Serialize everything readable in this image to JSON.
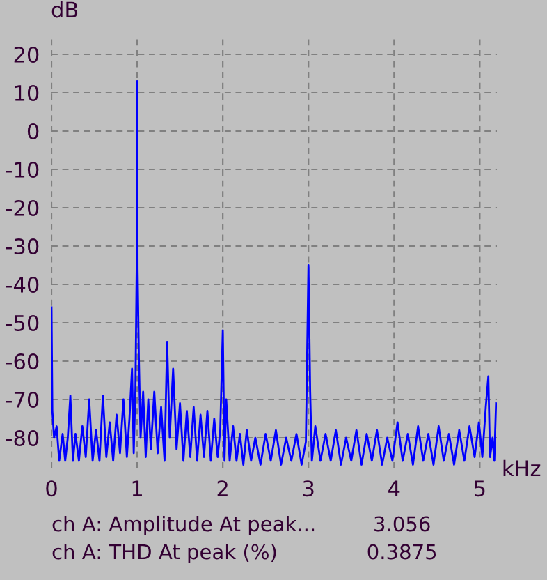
{
  "chart_data": {
    "type": "line",
    "xlabel": "kHz",
    "ylabel": "dB",
    "x": [
      0.0,
      0.01,
      0.03,
      0.06,
      0.09,
      0.13,
      0.16,
      0.19,
      0.22,
      0.25,
      0.28,
      0.32,
      0.36,
      0.4,
      0.44,
      0.48,
      0.52,
      0.56,
      0.6,
      0.64,
      0.68,
      0.72,
      0.76,
      0.8,
      0.84,
      0.88,
      0.91,
      0.94,
      0.96,
      0.98,
      0.995,
      1.0,
      1.005,
      1.02,
      1.04,
      1.07,
      1.1,
      1.13,
      1.16,
      1.2,
      1.24,
      1.28,
      1.32,
      1.35,
      1.38,
      1.42,
      1.46,
      1.5,
      1.54,
      1.58,
      1.62,
      1.66,
      1.7,
      1.74,
      1.78,
      1.82,
      1.86,
      1.9,
      1.94,
      1.97,
      2.0,
      2.02,
      2.04,
      2.08,
      2.12,
      2.16,
      2.2,
      2.24,
      2.28,
      2.33,
      2.38,
      2.44,
      2.5,
      2.56,
      2.62,
      2.68,
      2.74,
      2.8,
      2.86,
      2.92,
      2.97,
      3.0,
      3.02,
      3.04,
      3.08,
      3.14,
      3.2,
      3.26,
      3.32,
      3.38,
      3.44,
      3.5,
      3.56,
      3.62,
      3.68,
      3.74,
      3.8,
      3.86,
      3.92,
      3.98,
      4.04,
      4.1,
      4.16,
      4.22,
      4.28,
      4.34,
      4.4,
      4.46,
      4.52,
      4.58,
      4.64,
      4.7,
      4.76,
      4.82,
      4.88,
      4.94,
      4.99,
      5.03,
      5.07,
      5.1,
      5.12,
      5.15,
      5.17,
      5.19
    ],
    "series": [
      {
        "color": "#0000ff",
        "values": [
          -46,
          -73,
          -80,
          -77,
          -86,
          -79,
          -86,
          -80,
          -69,
          -86,
          -79,
          -86,
          -77,
          -85,
          -70,
          -86,
          -78,
          -86,
          -69,
          -85,
          -76,
          -86,
          -74,
          -84,
          -70,
          -85,
          -75,
          -62,
          -84,
          -67,
          -35,
          13,
          -36,
          -59,
          -80,
          -68,
          -85,
          -70,
          -83,
          -68,
          -84,
          -72,
          -86,
          -55,
          -80,
          -62,
          -83,
          -71,
          -86,
          -73,
          -85,
          -72,
          -86,
          -74,
          -85,
          -73,
          -86,
          -75,
          -85,
          -78,
          -52,
          -86,
          -70,
          -86,
          -77,
          -86,
          -79,
          -87,
          -78,
          -86,
          -80,
          -87,
          -79,
          -86,
          -78,
          -87,
          -80,
          -86,
          -79,
          -87,
          -81,
          -35,
          -68,
          -86,
          -77,
          -86,
          -79,
          -86,
          -78,
          -87,
          -80,
          -86,
          -78,
          -87,
          -79,
          -86,
          -78,
          -87,
          -80,
          -86,
          -76,
          -86,
          -79,
          -87,
          -77,
          -86,
          -79,
          -87,
          -77,
          -86,
          -79,
          -87,
          -78,
          -86,
          -77,
          -85,
          -76,
          -85,
          -72,
          -64,
          -85,
          -80,
          -86,
          -71
        ]
      }
    ],
    "xlim": [
      0,
      5.2
    ],
    "ylim": [
      -88,
      24
    ],
    "xticks": [
      0,
      1,
      2,
      3,
      4,
      5
    ],
    "yticks": [
      20,
      10,
      0,
      -10,
      -20,
      -30,
      -40,
      -50,
      -60,
      -70,
      -80
    ],
    "grid": true,
    "line_style": "solid",
    "marker": "none",
    "annotations": [
      "ch A: Amplitude At peak...",
      "3.056",
      "ch A: THD At peak (%)",
      "0.3875"
    ]
  }
}
